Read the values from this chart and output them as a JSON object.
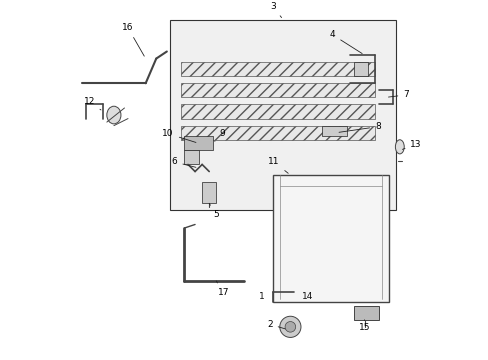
{
  "bg_color": "#ffffff",
  "dgray": "#444444",
  "gray": "#888888"
}
